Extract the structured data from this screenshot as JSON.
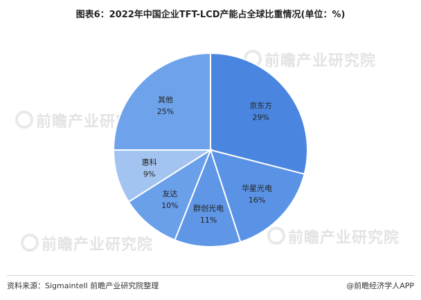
{
  "title": "图表6：2022年中国企业TFT-LCD产能占全球比重情况(单位：%)",
  "watermark_text": "前瞻产业研究院",
  "source": "资料来源：Sigmaintell 前瞻产业研究院整理",
  "brand": "@前瞻经济学人APP",
  "chart_data": {
    "type": "pie",
    "unit": "%",
    "start_angle_deg": 0,
    "direction": "clockwise",
    "slices": [
      {
        "name": "京东方",
        "value": 29,
        "label": "29%",
        "color": "#4a86e0"
      },
      {
        "name": "华星光电",
        "value": 16,
        "label": "16%",
        "color": "#5a92e6"
      },
      {
        "name": "群创光电",
        "value": 11,
        "label": "11%",
        "color": "#5f96e6"
      },
      {
        "name": "友达",
        "value": 10,
        "label": "10%",
        "color": "#6a9fea"
      },
      {
        "name": "惠科",
        "value": 9,
        "label": "9%",
        "color": "#a3c4f1"
      },
      {
        "name": "其他",
        "value": 25,
        "label": "25%",
        "color": "#6ea2ea"
      }
    ]
  }
}
